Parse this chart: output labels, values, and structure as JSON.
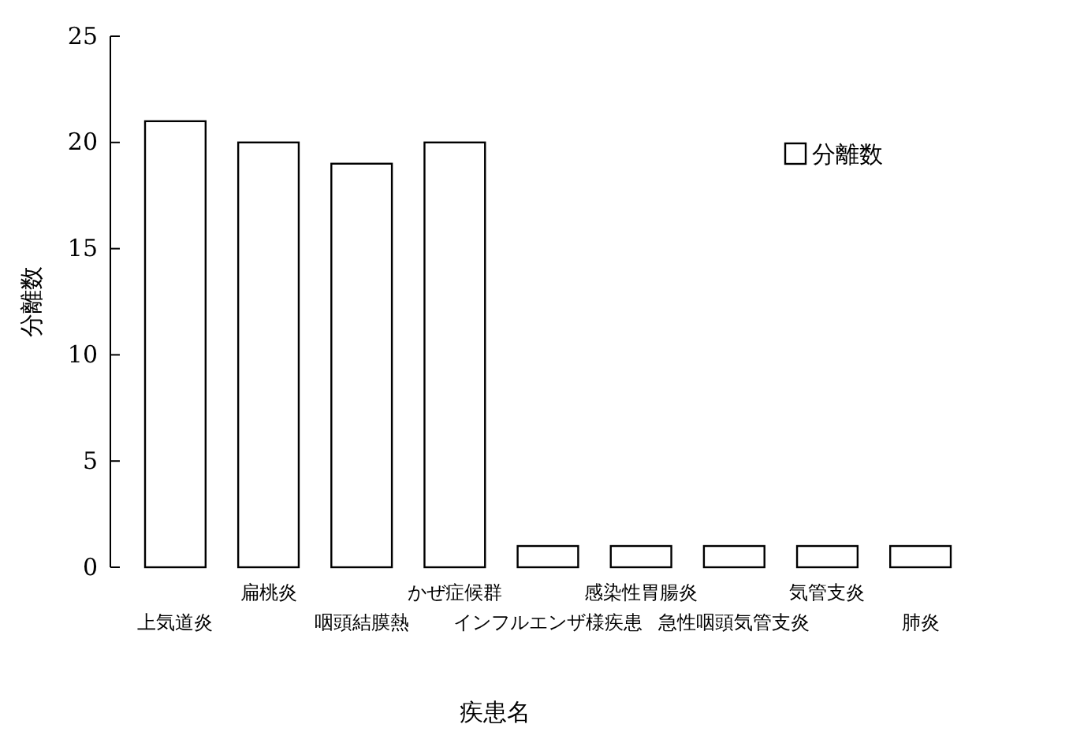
{
  "chart_data": {
    "type": "bar",
    "xlabel": "疾患名",
    "ylabel": "分離数",
    "categories": [
      "上気道炎",
      "扁桃炎",
      "咽頭結膜熱",
      "かぜ症候群",
      "インフルエンザ様疾患",
      "感染性胃腸炎",
      "急性咽頭気管支炎",
      "気管支炎",
      "肺炎"
    ],
    "series": [
      {
        "name": "分離数",
        "color": "#ffffff",
        "values": [
          21,
          20,
          19,
          20,
          1,
          1,
          1,
          1,
          1
        ]
      }
    ],
    "ylim": [
      0,
      25
    ],
    "yticks": [
      0,
      5,
      10,
      15,
      20,
      25
    ],
    "legend": "top right",
    "grid": false
  }
}
